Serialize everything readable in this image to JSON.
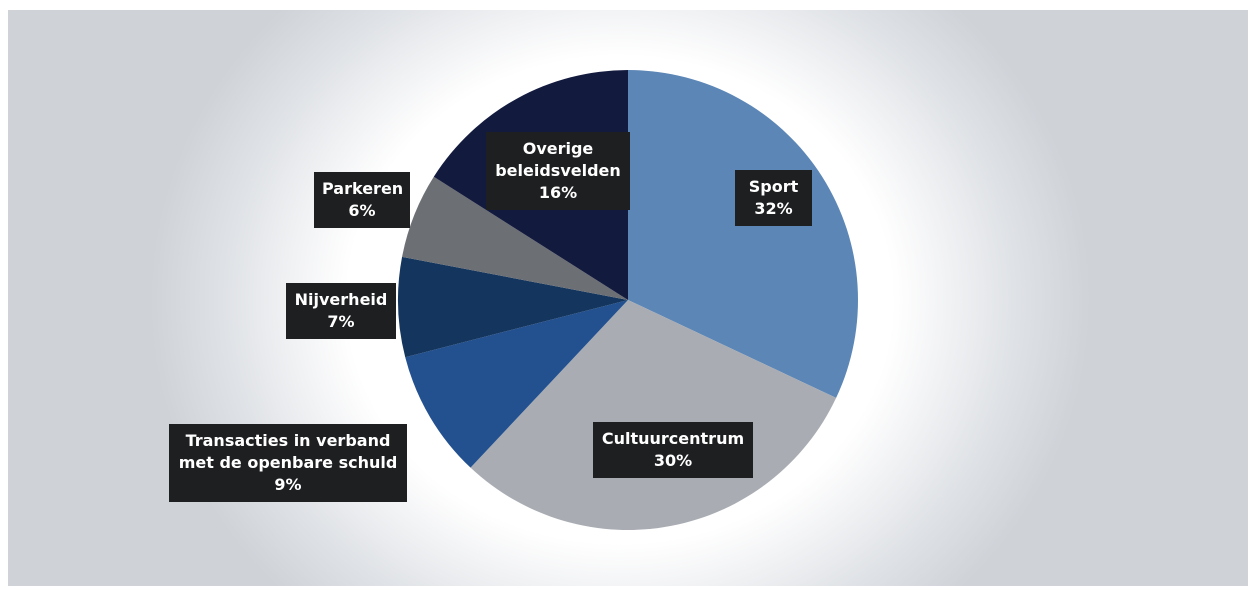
{
  "chart_data": {
    "type": "pie",
    "start_angle_deg": 0,
    "direction": "clockwise",
    "slices": [
      {
        "label": "Sport",
        "value": 32,
        "value_label": "32%",
        "color": "#5b86b6"
      },
      {
        "label": "Cultuurcentrum",
        "value": 30,
        "value_label": "30%",
        "color": "#a9adb3"
      },
      {
        "label": "Transacties in verband met de openbare schuld",
        "label_lines": [
          "Transacties in verband",
          "met de openbare schuld"
        ],
        "value": 9,
        "value_label": "9%",
        "color": "#23508f"
      },
      {
        "label": "Nijverheid",
        "value": 7,
        "value_label": "7%",
        "color": "#14365e"
      },
      {
        "label": "Parkeren",
        "value": 6,
        "value_label": "6%",
        "color": "#6c6f74"
      },
      {
        "label": "Overige beleidsvelden",
        "label_lines": [
          "Overige",
          "beleidsvelden"
        ],
        "value": 16,
        "value_label": "16%",
        "color": "#121a3e"
      }
    ]
  }
}
